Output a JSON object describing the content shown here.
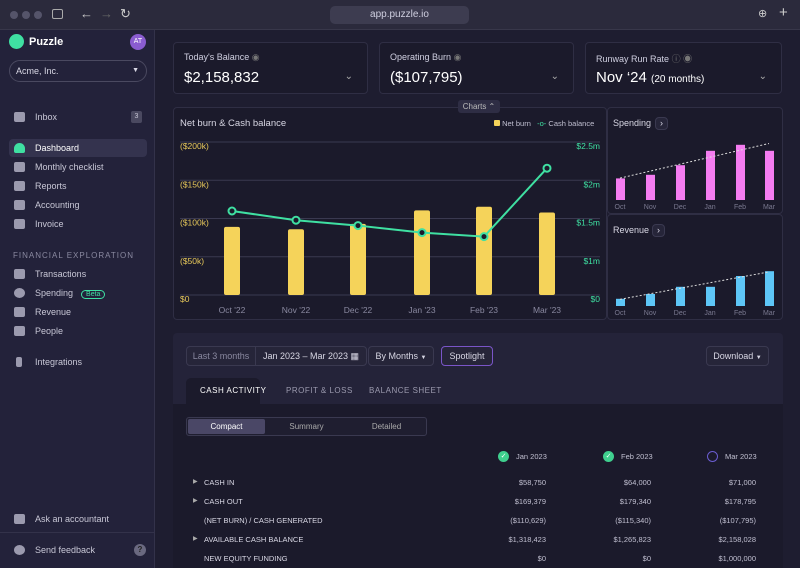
{
  "browser": {
    "url": "app.puzzle.io"
  },
  "sidebar": {
    "brand": "Puzzle",
    "avatar": "AT",
    "company": "Acme, Inc.",
    "inbox": {
      "label": "Inbox",
      "count": "3"
    },
    "items": [
      {
        "label": "Dashboard",
        "icon": "dashboard-icon"
      },
      {
        "label": "Monthly checklist",
        "icon": "checklist-icon"
      },
      {
        "label": "Reports",
        "icon": "reports-icon"
      },
      {
        "label": "Accounting",
        "icon": "folder-icon"
      },
      {
        "label": "Invoice",
        "icon": "invoice-icon"
      }
    ],
    "section": "FINANCIAL EXPLORATION",
    "explore": [
      {
        "label": "Transactions",
        "icon": "cash-icon"
      },
      {
        "label": "Spending",
        "icon": "flame-icon",
        "badge": "Beta"
      },
      {
        "label": "Revenue",
        "icon": "chart-line-icon"
      },
      {
        "label": "People",
        "icon": "people-icon"
      }
    ],
    "integrations": "Integrations",
    "ask": "Ask an accountant",
    "feedback": "Send feedback",
    "help": "?"
  },
  "kpis": [
    {
      "label": "Today's Balance",
      "value": "$2,158,832"
    },
    {
      "label": "Operating Burn",
      "value": "($107,795)"
    },
    {
      "label": "Runway Run Rate",
      "value": "Nov ‘24",
      "sub": "(20 months)"
    }
  ],
  "charts_toggle": "Charts",
  "accent": {
    "burn": "#f5d35a",
    "cash": "#3fe0a2",
    "spending": "#f47cf0",
    "revenue": "#5ec6f7"
  },
  "chart_data": [
    {
      "type": "bar+line",
      "title": "Net burn & Cash balance",
      "categories": [
        "Oct '22",
        "Nov '22",
        "Dec '22",
        "Jan '23",
        "Feb '23",
        "Mar '23"
      ],
      "series": [
        {
          "name": "Net burn",
          "type": "bar",
          "values": [
            89000,
            86000,
            93000,
            110629,
            115340,
            107795
          ]
        },
        {
          "name": "Cash balance",
          "type": "line",
          "values": [
            1600000,
            1480000,
            1410000,
            1318423,
            1265823,
            2158028
          ]
        }
      ],
      "left_ticks": [
        "($200k)",
        "($150k)",
        "($100k)",
        "($50k)",
        "$0"
      ],
      "right_ticks": [
        "$2.5m",
        "$2m",
        "$1.5m",
        "$1m",
        "$0"
      ],
      "ylim_left": [
        0,
        200000
      ],
      "grid": true,
      "legend": "top-right"
    },
    {
      "type": "bar",
      "title": "Spending",
      "categories": [
        "Oct",
        "Nov",
        "Dec",
        "Jan",
        "Feb",
        "Mar"
      ],
      "values": [
        18,
        21,
        29,
        41,
        46,
        41
      ],
      "trendline": true
    },
    {
      "type": "bar",
      "title": "Revenue",
      "categories": [
        "Oct",
        "Nov",
        "Dec",
        "Jan",
        "Feb",
        "Mar"
      ],
      "values": [
        6,
        10,
        16,
        16,
        25,
        29
      ],
      "trendline": true
    }
  ],
  "controls": {
    "range_preset": "Last 3 months",
    "range": "Jan 2023 – Mar 2023",
    "group": "By Months",
    "spotlight": "Spotlight",
    "download": "Download"
  },
  "tabs": [
    "CASH ACTIVITY",
    "PROFIT & LOSS",
    "BALANCE SHEET"
  ],
  "views": [
    "Compact",
    "Summary",
    "Detailed"
  ],
  "table": {
    "columns": [
      "Jan 2023",
      "Feb 2023",
      "Mar 2023"
    ],
    "rows": [
      {
        "label": "CASH IN",
        "expand": true,
        "values": [
          "$58,750",
          "$64,000",
          "$71,000"
        ]
      },
      {
        "label": "CASH OUT",
        "expand": true,
        "values": [
          "$169,379",
          "$179,340",
          "$178,795"
        ]
      },
      {
        "label": "(NET BURN) / CASH GENERATED",
        "expand": false,
        "values": [
          "($110,629)",
          "($115,340)",
          "($107,795)"
        ]
      },
      {
        "label": "AVAILABLE CASH BALANCE",
        "expand": true,
        "values": [
          "$1,318,423",
          "$1,265,823",
          "$2,158,028"
        ]
      },
      {
        "label": "NEW EQUITY FUNDING",
        "expand": false,
        "values": [
          "$0",
          "$0",
          "$1,000,000"
        ]
      }
    ]
  }
}
